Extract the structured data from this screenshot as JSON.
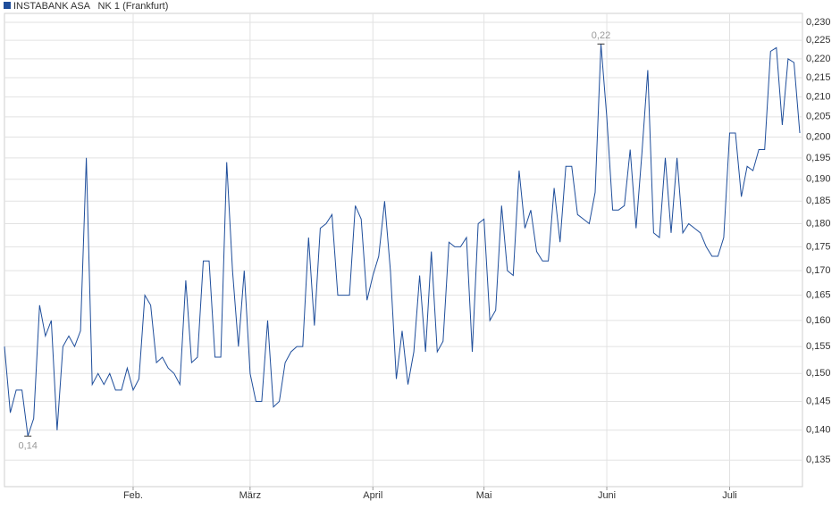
{
  "chart_data": {
    "type": "line",
    "log_scale": true,
    "grid": true,
    "legend": "top-left",
    "series": [
      {
        "name": "INSTABANK ASA   NK 1 (Frankfurt)",
        "color": "#1f4e9b",
        "values": [
          0.155,
          0.143,
          0.147,
          0.147,
          0.139,
          0.142,
          0.163,
          0.157,
          0.16,
          0.14,
          0.155,
          0.157,
          0.155,
          0.158,
          0.195,
          0.148,
          0.15,
          0.148,
          0.15,
          0.147,
          0.147,
          0.151,
          0.147,
          0.149,
          0.165,
          0.163,
          0.152,
          0.153,
          0.151,
          0.15,
          0.148,
          0.168,
          0.152,
          0.153,
          0.172,
          0.172,
          0.153,
          0.153,
          0.194,
          0.17,
          0.155,
          0.17,
          0.15,
          0.145,
          0.145,
          0.16,
          0.144,
          0.145,
          0.152,
          0.154,
          0.155,
          0.155,
          0.177,
          0.159,
          0.179,
          0.18,
          0.182,
          0.165,
          0.165,
          0.165,
          0.184,
          0.181,
          0.164,
          0.169,
          0.173,
          0.185,
          0.17,
          0.149,
          0.158,
          0.148,
          0.154,
          0.169,
          0.154,
          0.174,
          0.154,
          0.156,
          0.176,
          0.175,
          0.175,
          0.177,
          0.154,
          0.18,
          0.181,
          0.16,
          0.162,
          0.184,
          0.17,
          0.169,
          0.192,
          0.179,
          0.183,
          0.174,
          0.172,
          0.172,
          0.188,
          0.176,
          0.193,
          0.193,
          0.182,
          0.181,
          0.18,
          0.187,
          0.224,
          0.205,
          0.183,
          0.183,
          0.184,
          0.197,
          0.179,
          0.196,
          0.217,
          0.178,
          0.177,
          0.195,
          0.178,
          0.195,
          0.178,
          0.18,
          0.179,
          0.178,
          0.175,
          0.173,
          0.173,
          0.177,
          0.201,
          0.201,
          0.186,
          0.193,
          0.192,
          0.197,
          0.197,
          0.222,
          0.223,
          0.203,
          0.22,
          0.219,
          0.201
        ]
      }
    ],
    "categories": [
      null,
      null,
      null,
      null,
      null,
      null,
      null,
      null,
      null,
      null,
      null,
      null,
      null,
      null,
      null,
      null,
      null,
      null,
      null,
      null,
      null,
      null,
      "Feb.",
      null,
      null,
      null,
      null,
      null,
      null,
      null,
      null,
      null,
      null,
      null,
      null,
      null,
      null,
      null,
      null,
      null,
      null,
      null,
      "März",
      null,
      null,
      null,
      null,
      null,
      null,
      null,
      null,
      null,
      null,
      null,
      null,
      null,
      null,
      null,
      null,
      null,
      null,
      null,
      null,
      "April",
      null,
      null,
      null,
      null,
      null,
      null,
      null,
      null,
      null,
      null,
      null,
      null,
      null,
      null,
      null,
      null,
      null,
      null,
      "Mai",
      null,
      null,
      null,
      null,
      null,
      null,
      null,
      null,
      null,
      null,
      null,
      null,
      null,
      null,
      null,
      null,
      null,
      null,
      null,
      null,
      "Juni",
      null,
      null,
      null,
      null,
      null,
      null,
      null,
      null,
      null,
      null,
      null,
      null,
      null,
      null,
      null,
      null,
      null,
      null,
      null,
      null,
      "Juli",
      null,
      null,
      null,
      null,
      null,
      null,
      null,
      null,
      null,
      null,
      null,
      null
    ],
    "ylim": [
      0.1307,
      0.2325
    ],
    "yticks": [
      {
        "value": 0.135,
        "label": "0,135"
      },
      {
        "value": 0.14,
        "label": "0,140"
      },
      {
        "value": 0.145,
        "label": "0,145"
      },
      {
        "value": 0.15,
        "label": "0,150"
      },
      {
        "value": 0.155,
        "label": "0,155"
      },
      {
        "value": 0.16,
        "label": "0,160"
      },
      {
        "value": 0.165,
        "label": "0,165"
      },
      {
        "value": 0.17,
        "label": "0,170"
      },
      {
        "value": 0.175,
        "label": "0,175"
      },
      {
        "value": 0.18,
        "label": "0,180"
      },
      {
        "value": 0.185,
        "label": "0,185"
      },
      {
        "value": 0.19,
        "label": "0,190"
      },
      {
        "value": 0.195,
        "label": "0,195"
      },
      {
        "value": 0.2,
        "label": "0,200"
      },
      {
        "value": 0.205,
        "label": "0,205"
      },
      {
        "value": 0.21,
        "label": "0,210"
      },
      {
        "value": 0.215,
        "label": "0,215"
      },
      {
        "value": 0.22,
        "label": "0,220"
      },
      {
        "value": 0.225,
        "label": "0,225"
      },
      {
        "value": 0.23,
        "label": "0,230"
      }
    ],
    "annotations": [
      {
        "label": "0,14",
        "value": 0.139,
        "position": "below"
      },
      {
        "label": "0,22",
        "value": 0.224,
        "position": "above"
      }
    ]
  }
}
